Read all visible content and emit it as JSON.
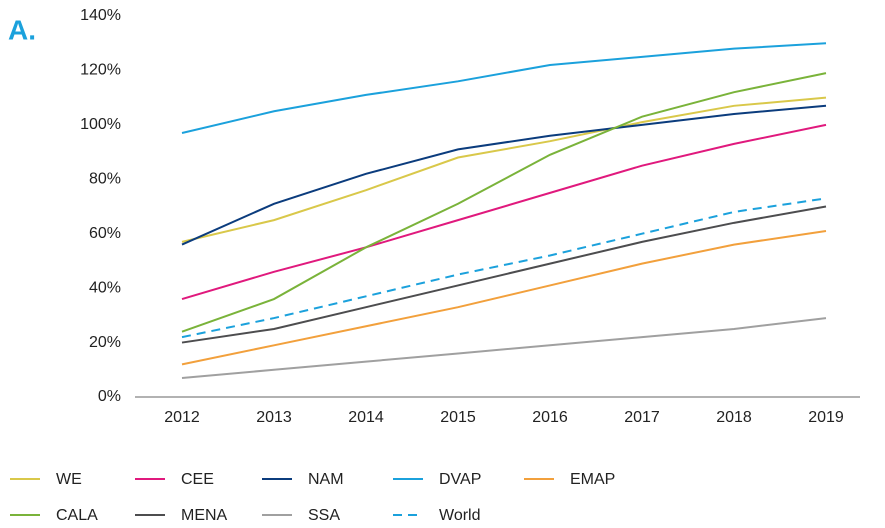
{
  "chart_data": {
    "type": "line",
    "panel_label": "A.",
    "categories": [
      "2012",
      "2013",
      "2014",
      "2015",
      "2016",
      "2017",
      "2018",
      "2019"
    ],
    "ylim": [
      0,
      140
    ],
    "yticks": [
      {
        "value": 0,
        "label": "0%"
      },
      {
        "value": 20,
        "label": "20%"
      },
      {
        "value": 40,
        "label": "40%"
      },
      {
        "value": 60,
        "label": "60%"
      },
      {
        "value": 80,
        "label": "80%"
      },
      {
        "value": 100,
        "label": "100%"
      },
      {
        "value": 120,
        "label": "120%"
      },
      {
        "value": 140,
        "label": "140%"
      }
    ],
    "grid": false,
    "series": [
      {
        "name": "WE",
        "color": "#d9c84a",
        "values": [
          57,
          65,
          76,
          88,
          94,
          101,
          107,
          110
        ]
      },
      {
        "name": "CEE",
        "color": "#e0197d",
        "values": [
          36,
          46,
          55,
          65,
          75,
          85,
          93,
          100
        ]
      },
      {
        "name": "NAM",
        "color": "#0b3c7d",
        "values": [
          56,
          71,
          82,
          91,
          96,
          100,
          104,
          107
        ]
      },
      {
        "name": "DVAP",
        "color": "#1ba1dc",
        "values": [
          97,
          105,
          111,
          116,
          122,
          125,
          128,
          130
        ]
      },
      {
        "name": "EMAP",
        "color": "#f2a03c",
        "values": [
          12,
          19,
          26,
          33,
          41,
          49,
          56,
          61
        ]
      },
      {
        "name": "CALA",
        "color": "#7ab33a",
        "values": [
          24,
          36,
          55,
          71,
          89,
          103,
          112,
          119
        ]
      },
      {
        "name": "MENA",
        "color": "#4d4d4f",
        "values": [
          20,
          25,
          33,
          41,
          49,
          57,
          64,
          70
        ]
      },
      {
        "name": "SSA",
        "color": "#a0a0a0",
        "values": [
          7,
          10,
          13,
          16,
          19,
          22,
          25,
          29
        ]
      },
      {
        "name": "World",
        "color": "#1ba1dc",
        "dashed": true,
        "values": [
          22,
          29,
          37,
          45,
          52,
          60,
          68,
          73
        ]
      }
    ]
  }
}
